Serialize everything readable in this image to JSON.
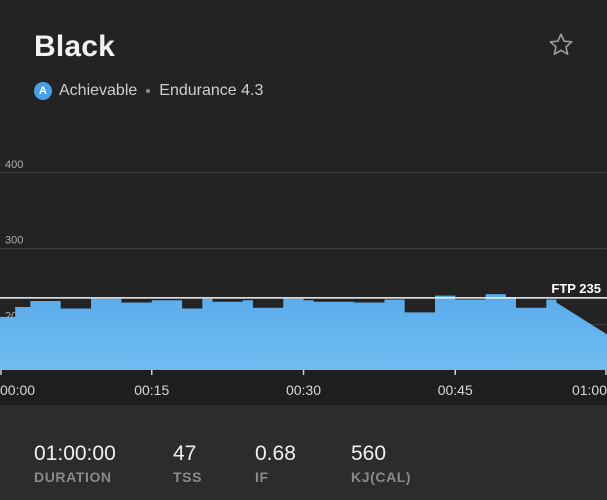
{
  "workout": {
    "title": "Black",
    "badge_letter": "A",
    "difficulty": "Achievable",
    "zone": "Endurance 4.3",
    "favorite_icon": "star-icon"
  },
  "chart_data": {
    "type": "area",
    "y_tick_labels": [
      "400",
      "300",
      "200"
    ],
    "x_tick_labels": [
      "00:00",
      "00:15",
      "00:30",
      "00:45",
      "01:00"
    ],
    "ylim": [
      140,
      430
    ],
    "xlim": [
      0,
      60
    ],
    "ftp_label": "FTP 235",
    "ftp_value": 235,
    "grid": true,
    "color": "#5aabeb",
    "segments": [
      {
        "t0": 0,
        "t1": 1.5,
        "w": 210
      },
      {
        "t0": 1.5,
        "t1": 3,
        "w": 223
      },
      {
        "t0": 3,
        "t1": 6,
        "w": 231
      },
      {
        "t0": 6,
        "t1": 9,
        "w": 221
      },
      {
        "t0": 9,
        "t1": 12,
        "w": 234
      },
      {
        "t0": 12,
        "t1": 15,
        "w": 229
      },
      {
        "t0": 15,
        "t1": 18,
        "w": 232
      },
      {
        "t0": 18,
        "t1": 20,
        "w": 221
      },
      {
        "t0": 20,
        "t1": 21,
        "w": 234
      },
      {
        "t0": 21,
        "t1": 24,
        "w": 230
      },
      {
        "t0": 24,
        "t1": 25,
        "w": 232
      },
      {
        "t0": 25,
        "t1": 28,
        "w": 222
      },
      {
        "t0": 28,
        "t1": 30,
        "w": 234
      },
      {
        "t0": 30,
        "t1": 31,
        "w": 232
      },
      {
        "t0": 31,
        "t1": 34,
        "w": 230
      },
      {
        "t0": 34,
        "t1": 35,
        "w": 230
      },
      {
        "t0": 35,
        "t1": 38,
        "w": 229
      },
      {
        "t0": 38,
        "t1": 40,
        "w": 233
      },
      {
        "t0": 40,
        "t1": 43,
        "w": 216
      },
      {
        "t0": 43,
        "t1": 45,
        "w": 238
      },
      {
        "t0": 45,
        "t1": 48,
        "w": 233
      },
      {
        "t0": 48,
        "t1": 50,
        "w": 240
      },
      {
        "t0": 50,
        "t1": 51,
        "w": 236
      },
      {
        "t0": 51,
        "t1": 54,
        "w": 222
      },
      {
        "t0": 54,
        "t1": 55,
        "w": 233
      },
      {
        "t0": 55,
        "t1": 60,
        "w": 229,
        "w_end": 187
      }
    ]
  },
  "stats": [
    {
      "value": "01:00:00",
      "label": "DURATION"
    },
    {
      "value": "47",
      "label": "TSS"
    },
    {
      "value": "0.68",
      "label": "IF"
    },
    {
      "value": "560",
      "label": "KJ(CAL)"
    }
  ]
}
